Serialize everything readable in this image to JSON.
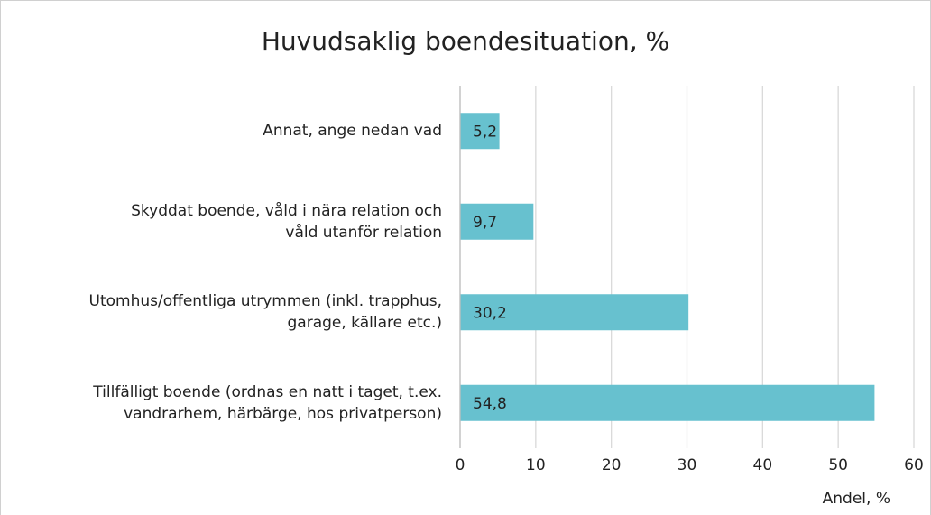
{
  "chart_data": {
    "type": "bar",
    "orientation": "horizontal",
    "title": "Huvudsaklig boendesituation, %",
    "categories": [
      "Annat, ange nedan vad",
      "Skyddat boende, våld i nära relation och\nvåld utanför relation",
      "Utomhus/offentliga utrymmen (inkl. trapphus,\ngarage, källare etc.)",
      "Tillfälligt boende (ordnas en natt i taget, t.ex.\nvandrarhem, härbärge, hos privatperson)"
    ],
    "values": [
      5.2,
      9.7,
      30.2,
      54.8
    ],
    "value_labels": [
      "5,2",
      "9,7",
      "30,2",
      "54,8"
    ],
    "color": "#67c1cf",
    "xlabel": "Andel, %",
    "xlim": [
      0,
      60
    ],
    "xticks": [
      0,
      10,
      20,
      30,
      40,
      50,
      60
    ],
    "grid": true
  }
}
